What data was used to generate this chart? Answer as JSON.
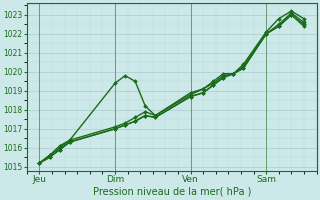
{
  "xlabel": "Pression niveau de la mer( hPa )",
  "background_color": "#cce8e8",
  "plot_bg_color": "#cce8e8",
  "grid_color_major": "#aacccc",
  "grid_color_minor": "#bbdddd",
  "line_color": "#1a6b1a",
  "ylim": [
    1014.8,
    1023.6
  ],
  "yticks": [
    1015,
    1016,
    1017,
    1018,
    1019,
    1020,
    1021,
    1022,
    1023
  ],
  "xtick_labels": [
    "Jeu",
    "Dim",
    "Ven",
    "Sam"
  ],
  "xtick_positions": [
    0.5,
    3.5,
    6.5,
    9.5
  ],
  "vline_positions": [
    0.5,
    3.5,
    6.5,
    9.5
  ],
  "xlim": [
    0,
    11.5
  ],
  "series1_x": [
    0.5,
    0.9,
    1.3,
    1.7,
    3.5,
    3.9,
    4.3,
    4.7,
    5.1,
    6.5,
    7.0,
    7.4,
    7.8,
    8.2,
    8.6,
    9.5,
    10.0,
    10.5,
    11.0
  ],
  "series1_y": [
    1015.2,
    1015.6,
    1016.1,
    1016.4,
    1019.4,
    1019.8,
    1019.5,
    1018.2,
    1017.7,
    1018.9,
    1019.1,
    1019.5,
    1019.9,
    1019.9,
    1020.4,
    1022.1,
    1022.8,
    1023.2,
    1022.8
  ],
  "series2_x": [
    0.5,
    0.9,
    1.3,
    1.7,
    3.5,
    3.9,
    4.3,
    4.7,
    5.1,
    6.5,
    7.0,
    7.4,
    7.8,
    8.2,
    8.6,
    9.5,
    10.0,
    10.5,
    11.0
  ],
  "series2_y": [
    1015.2,
    1015.6,
    1016.0,
    1016.4,
    1017.1,
    1017.3,
    1017.6,
    1017.9,
    1017.7,
    1018.8,
    1019.1,
    1019.4,
    1019.8,
    1019.9,
    1020.3,
    1022.0,
    1022.5,
    1023.1,
    1022.6
  ],
  "series3_x": [
    0.5,
    0.9,
    1.3,
    1.7,
    3.5,
    3.9,
    4.3,
    4.7,
    5.1,
    6.5,
    7.0,
    7.4,
    7.8,
    8.2,
    8.6,
    9.5,
    10.0,
    10.5,
    11.0
  ],
  "series3_y": [
    1015.2,
    1015.5,
    1015.9,
    1016.3,
    1017.0,
    1017.2,
    1017.4,
    1017.7,
    1017.6,
    1018.7,
    1018.9,
    1019.3,
    1019.7,
    1019.9,
    1020.2,
    1022.0,
    1022.4,
    1023.0,
    1022.5
  ],
  "series4_x": [
    0.5,
    0.9,
    1.3,
    1.7,
    3.5,
    3.9,
    4.3,
    4.7,
    5.1,
    6.5,
    7.0,
    7.4,
    7.8,
    8.2,
    8.6,
    9.5,
    10.0,
    10.5,
    11.0
  ],
  "series4_y": [
    1015.2,
    1015.5,
    1015.9,
    1016.3,
    1017.0,
    1017.2,
    1017.4,
    1017.7,
    1017.6,
    1018.7,
    1018.9,
    1019.3,
    1019.7,
    1019.9,
    1020.2,
    1022.0,
    1022.4,
    1023.0,
    1022.4
  ],
  "marker": "D",
  "markersize": 2.0,
  "linewidth": 1.0,
  "xlabel_fontsize": 7,
  "ytick_fontsize": 5.5,
  "xtick_fontsize": 6.5
}
